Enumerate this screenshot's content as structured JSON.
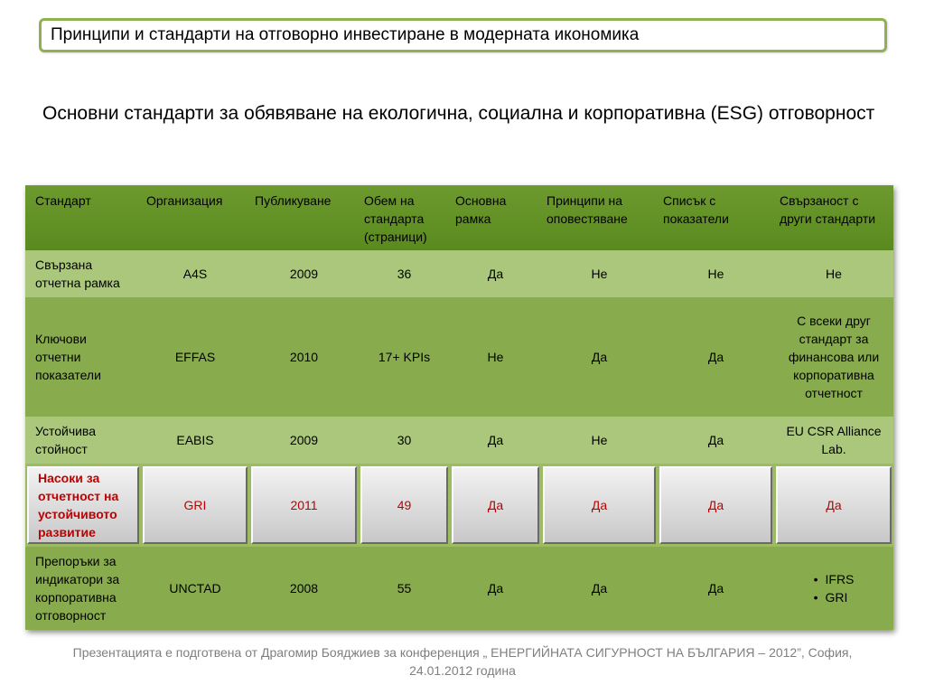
{
  "title": "Принципи и стандарти на отговорно инвестиране в модерната икономика",
  "subtitle": "Основни стандарти за обявяване на екологична, социална и корпоративна (ESG) отговорност",
  "table": {
    "headers": [
      "Стандарт",
      "Организация",
      "Публикуване",
      "Обем  на стандарта (страници)",
      "Основна рамка",
      "Принципи на оповестяване",
      "Списък с показатели",
      "Свързаност с други стандарти"
    ],
    "rows": [
      [
        "Свързана отчетна рамка",
        "A4S",
        "2009",
        "36",
        "Да",
        "Не",
        "Не",
        "Не"
      ],
      [
        "Ключови отчетни показатели",
        "EFFAS",
        "2010",
        "17+ KPIs",
        "Не",
        "Да",
        "Да",
        "С всеки друг стандарт за финансова или корпоративна отчетност"
      ],
      [
        "Устойчива стойност",
        "EABIS",
        "2009",
        "30",
        "Да",
        "Не",
        "Да",
        "EU CSR Alliance Lab."
      ],
      [
        "Насоки за отчетност на устойчивото развитие",
        "GRI",
        "2011",
        "49",
        "Да",
        "Да",
        "Да",
        "Да"
      ],
      [
        "Препоръки за индикатори за корпоративна отговорност",
        "UNCTAD",
        "2008",
        "55",
        "Да",
        "Да",
        "Да",
        ""
      ]
    ],
    "row5_links": [
      "IFRS",
      "GRI"
    ]
  },
  "footer": {
    "line1": "Презентацията е подготвена от Драгомир Бояджиев за конференция „ ЕНЕРГИЙНАТА СИГУРНОСТ НА БЪЛГАРИЯ – 2012”, София,",
    "line2": "24.01.2012 година"
  },
  "colors": {
    "title_border": "#8fb152",
    "header_green": "#5a8a1f",
    "row_light": "#aac77c",
    "row_dark": "#88ab4e",
    "highlight_text": "#c00000"
  }
}
